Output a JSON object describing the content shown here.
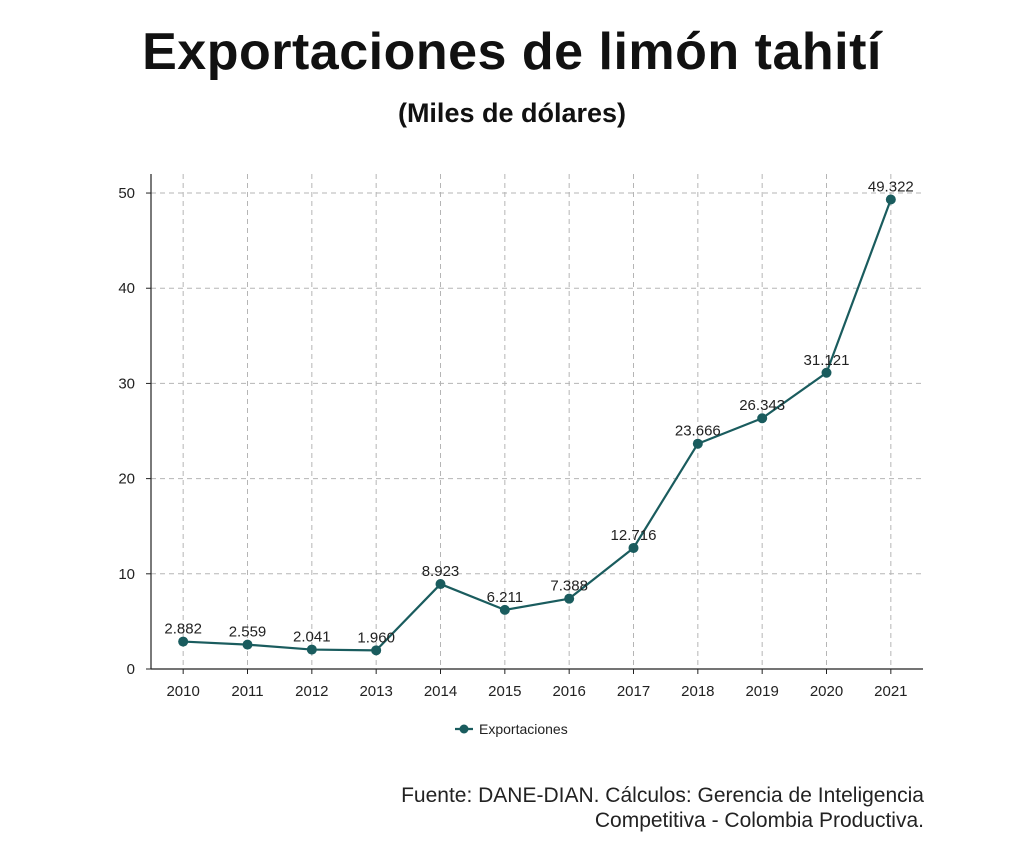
{
  "title": "Exportaciones de limón tahití",
  "subtitle": "(Miles de dólares)",
  "source": {
    "line1": "Fuente: DANE-DIAN. Cálculos: Gerencia de Inteligencia",
    "line2": "Competitiva - Colombia Productiva."
  },
  "colors": {
    "series": "#1a5c5e",
    "grid": "#b5b5b5",
    "axis": "#222222"
  },
  "chart_data": {
    "type": "line",
    "title": "Exportaciones de limón tahití",
    "subtitle": "(Miles de dólares)",
    "xlabel": "",
    "ylabel": "",
    "categories": [
      "2010",
      "2011",
      "2012",
      "2013",
      "2014",
      "2015",
      "2016",
      "2017",
      "2018",
      "2019",
      "2020",
      "2021"
    ],
    "series": [
      {
        "name": "Exportaciones",
        "values": [
          2.882,
          2.559,
          2.041,
          1.96,
          8.923,
          6.211,
          7.388,
          12.716,
          23.666,
          26.343,
          31.121,
          49.322
        ],
        "labels": [
          "2.882",
          "2.559",
          "2.041",
          "1.960",
          "8.923",
          "6.211",
          "7.388",
          "12.716",
          "23.666",
          "26.343",
          "31.121",
          "49.322"
        ]
      }
    ],
    "ylim": [
      0,
      52
    ],
    "yticks": [
      0,
      10,
      20,
      30,
      40,
      50
    ],
    "grid": true,
    "legend": "bottom-center"
  }
}
